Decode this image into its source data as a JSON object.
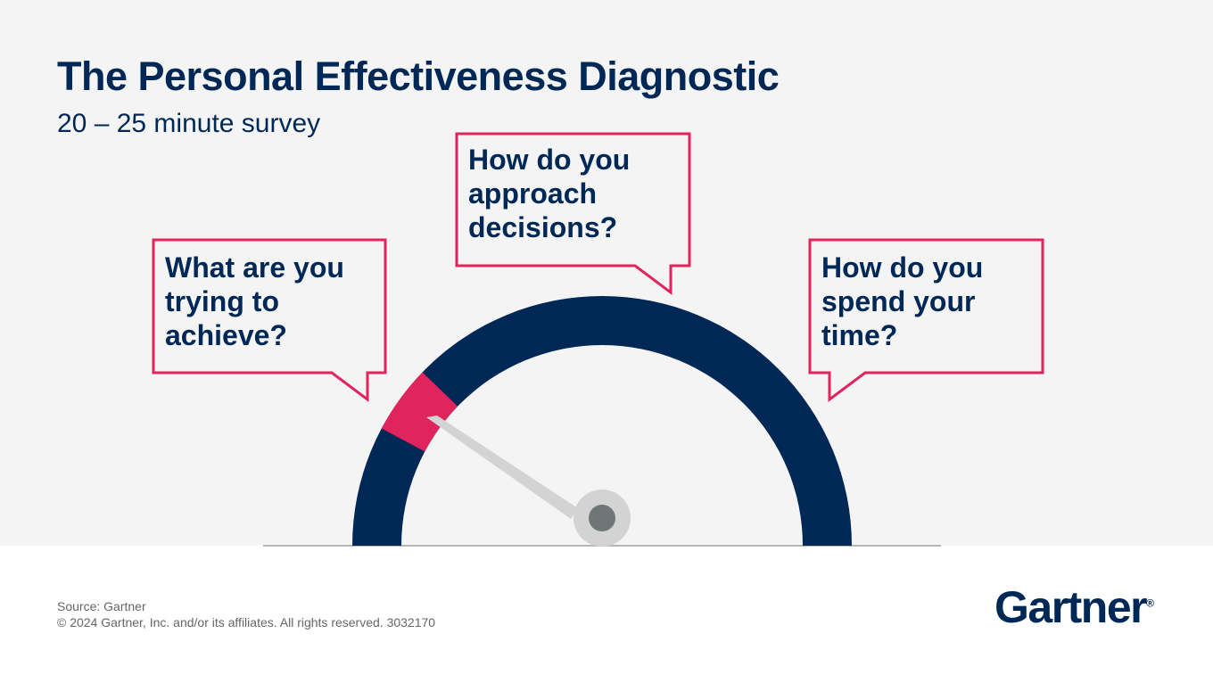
{
  "title": "The Personal Effectiveness Diagnostic",
  "subtitle": "20 – 25 minute survey",
  "questions": [
    "What are you trying to achieve?",
    "How do you approach decisions?",
    "How do you spend your time?"
  ],
  "gauge": {
    "highlight_color": "#e0245e",
    "arc_color": "#002856",
    "needle_color": "#d3d3d3",
    "hub_color": "#6e7676"
  },
  "footer": {
    "source": "Source: Gartner",
    "copyright": "© 2024 Gartner, Inc. and/or its affiliates. All rights reserved. 3032170"
  },
  "logo": "Gartner"
}
